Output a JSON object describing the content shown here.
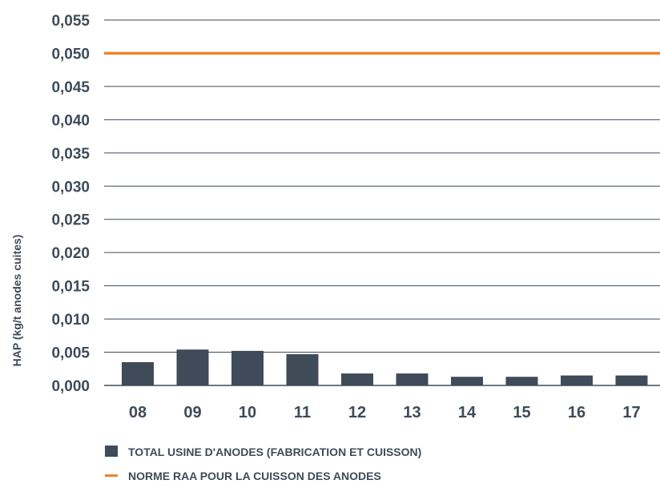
{
  "chart_data": {
    "type": "bar",
    "categories": [
      "08",
      "09",
      "10",
      "11",
      "12",
      "13",
      "14",
      "15",
      "16",
      "17"
    ],
    "series": [
      {
        "name": "TOTAL USINE D'ANODES (FABRICATION ET CUISSON)",
        "values": [
          0.0035,
          0.0054,
          0.0052,
          0.0047,
          0.0018,
          0.0018,
          0.0013,
          0.0013,
          0.0015,
          0.0015
        ],
        "color": "#3f4b59"
      }
    ],
    "reference_line": {
      "name": "NORME RAA POUR LA CUISSON DES ANODES",
      "value": 0.05,
      "color": "#f0822a"
    },
    "ylabel": "HAP (kg/t anodes cuites)",
    "ylim": [
      0,
      0.055
    ],
    "ytick_labels": [
      "0,000",
      "0,005",
      "0,010",
      "0,015",
      "0,020",
      "0,025",
      "0,030",
      "0,035",
      "0,040",
      "0,045",
      "0,050",
      "0,055"
    ],
    "grid": true,
    "legend_position": "bottom-left"
  }
}
